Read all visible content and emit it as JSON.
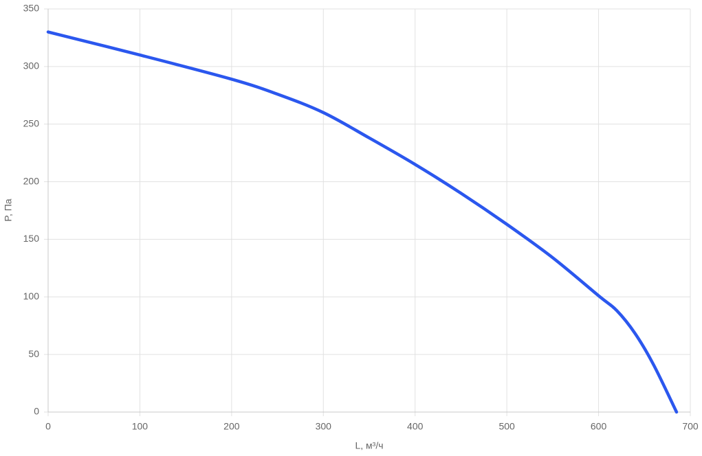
{
  "chart_data": {
    "type": "line",
    "x_label": "L, м³/ч",
    "y_label": "P, Па",
    "x": [
      0,
      100,
      200,
      250,
      300,
      350,
      400,
      450,
      500,
      550,
      600,
      620,
      640,
      660,
      685
    ],
    "series": [
      {
        "color": "#2b57ee",
        "values": [
          330,
          310,
          289,
          276,
          260,
          238,
          215,
          190,
          163,
          134,
          101,
          88,
          68,
          41,
          0
        ]
      }
    ],
    "xlim": [
      0,
      700
    ],
    "ylim": [
      0,
      350
    ],
    "xticks": [
      0,
      100,
      200,
      300,
      400,
      500,
      600,
      700
    ],
    "yticks": [
      0,
      50,
      100,
      150,
      200,
      250,
      300,
      350
    ],
    "grid": true
  }
}
